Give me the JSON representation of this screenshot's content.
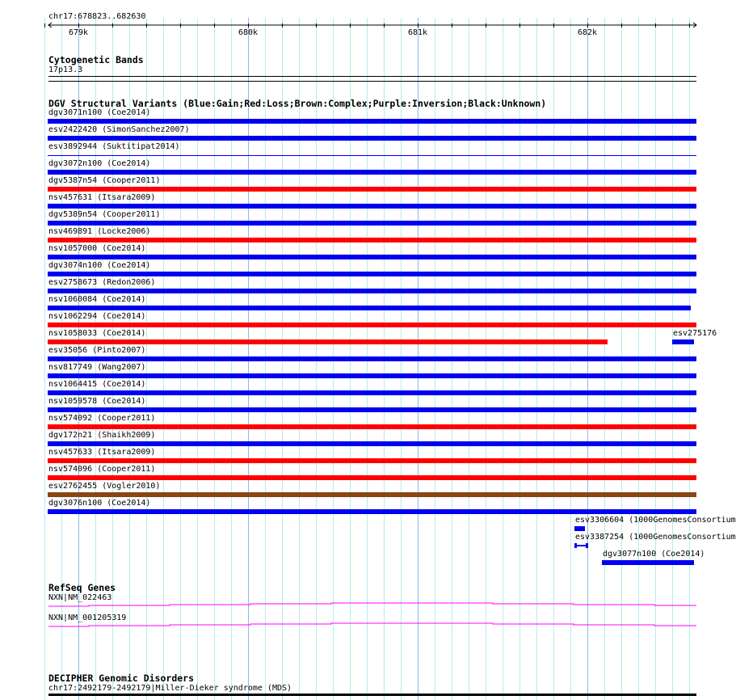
{
  "ruler": {
    "range": "chr17:678823..682630",
    "ticks": [
      {
        "label": "679k",
        "pos": 679000
      },
      {
        "label": "680k",
        "pos": 680000
      },
      {
        "label": "681k",
        "pos": 681000
      },
      {
        "label": "682k",
        "pos": 682000
      }
    ],
    "start": 678823,
    "end": 682630
  },
  "cytobands": {
    "title": "Cytogenetic Bands",
    "band": "17p13.3"
  },
  "dgv": {
    "title": "DGV Structural Variants (Blue:Gain;Red:Loss;Brown:Complex;Purple:Inversion;Black:Unknown)",
    "colors": {
      "gain": "#0000ee",
      "loss": "#ff0000",
      "complex": "#8b4513"
    },
    "rows": [
      {
        "label": "dgv3071n100 (Coe2014)",
        "type": "gain"
      },
      {
        "label": "esv2422420 (SimonSanchez2007)",
        "type": "gain"
      },
      {
        "label": "esv3892944 (Suktitipat2014)",
        "type": "gain",
        "thin": true
      },
      {
        "label": "dgv3072n100 (Coe2014)",
        "type": "gain"
      },
      {
        "label": "dgv5387n54 (Cooper2011)",
        "type": "loss"
      },
      {
        "label": "nsv457631 (Itsara2009)",
        "type": "gain"
      },
      {
        "label": "dgv5389n54 (Cooper2011)",
        "type": "gain"
      },
      {
        "label": "nsv469891 (Locke2006)",
        "type": "loss"
      },
      {
        "label": "nsv1057000 (Coe2014)",
        "type": "gain"
      },
      {
        "label": "dgv3074n100 (Coe2014)",
        "type": "gain"
      },
      {
        "label": "esv2758673 (Redon2006)",
        "type": "gain"
      },
      {
        "label": "nsv1060084 (Coe2014)",
        "type": "gain",
        "end": 682610
      },
      {
        "label": "nsv1062294 (Coe2014)",
        "type": "loss"
      },
      {
        "label": "nsv1058033 (Coe2014)",
        "type": "loss",
        "end": 682120
      },
      {
        "label": "esv35056 (Pinto2007)",
        "type": "gain"
      },
      {
        "label": "nsv817749 (Wang2007)",
        "type": "gain"
      },
      {
        "label": "nsv1064415 (Coe2014)",
        "type": "gain"
      },
      {
        "label": "nsv1059578 (Coe2014)",
        "type": "gain"
      },
      {
        "label": "nsv574092 (Cooper2011)",
        "type": "loss"
      },
      {
        "label": "dgv172n21 (Shaikh2009)",
        "type": "gain"
      },
      {
        "label": "nsv457633 (Itsara2009)",
        "type": "loss"
      },
      {
        "label": "nsv574096 (Cooper2011)",
        "type": "loss"
      },
      {
        "label": "esv2762455 (Vogler2010)",
        "type": "complex"
      },
      {
        "label": "dgv3076n100 (Coe2014)",
        "type": "gain"
      }
    ],
    "extra": [
      {
        "label": "esv275176",
        "type": "gain",
        "row": 13,
        "start": 682505,
        "end": 682630
      },
      {
        "label": "esv3306604 (1000GenomesConsortium",
        "type": "gain",
        "row": 24,
        "start": 681930,
        "end": 681985
      },
      {
        "label": "esv3387254 (1000GenomesConsortium",
        "type": "gain",
        "row": 25,
        "start": 681930,
        "end": 682005,
        "split": true
      },
      {
        "label": "dgv3077n100 (Coe2014)",
        "type": "gain",
        "row": 26,
        "start": 682090,
        "end": 682630
      }
    ]
  },
  "refseq": {
    "title": "RefSeq Genes",
    "color": "#ff00ff",
    "genes": [
      {
        "label": "NXN|NM_022463"
      },
      {
        "label": "NXN|NM_001205319"
      }
    ]
  },
  "decipher": {
    "title": "DECIPHER Genomic Disorders",
    "item": "chr17:2492179-2492179|Miller-Dieker syndrome (MDS)"
  }
}
